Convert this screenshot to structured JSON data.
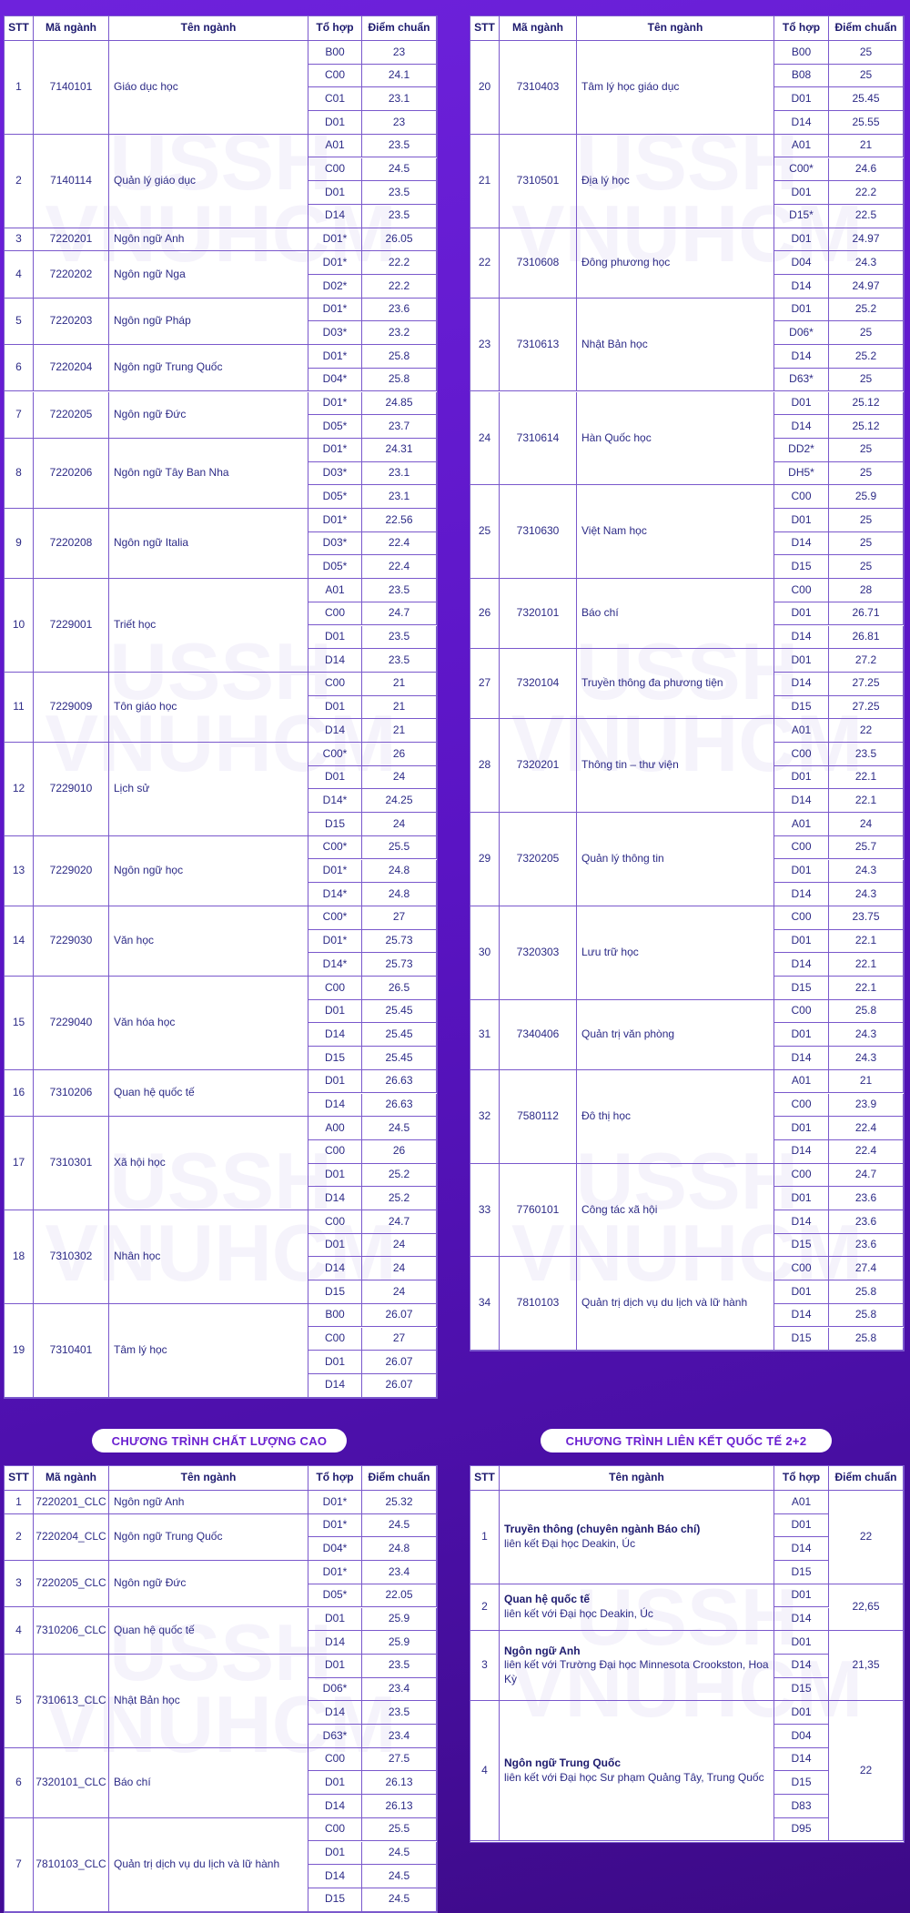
{
  "watermark": [
    "USSH",
    "VNUHCM"
  ],
  "tables": [
    {
      "headers": [
        "STT",
        "Mã ngành",
        "Tên ngành",
        "Tổ hợp",
        "Điểm chuẩn"
      ],
      "rows": [
        {
          "stt": 1,
          "code": "7140101",
          "name": "Giáo dục học",
          "combos": [
            [
              "B00",
              "23"
            ],
            [
              "C00",
              "24.1"
            ],
            [
              "C01",
              "23.1"
            ],
            [
              "D01",
              "23"
            ]
          ]
        },
        {
          "stt": 2,
          "code": "7140114",
          "name": "Quản lý giáo dục",
          "combos": [
            [
              "A01",
              "23.5"
            ],
            [
              "C00",
              "24.5"
            ],
            [
              "D01",
              "23.5"
            ],
            [
              "D14",
              "23.5"
            ]
          ]
        },
        {
          "stt": 3,
          "code": "7220201",
          "name": "Ngôn ngữ Anh",
          "combos": [
            [
              "D01*",
              "26.05"
            ]
          ]
        },
        {
          "stt": 4,
          "code": "7220202",
          "name": "Ngôn ngữ Nga",
          "combos": [
            [
              "D01*",
              "22.2"
            ],
            [
              "D02*",
              "22.2"
            ]
          ]
        },
        {
          "stt": 5,
          "code": "7220203",
          "name": "Ngôn ngữ Pháp",
          "combos": [
            [
              "D01*",
              "23.6"
            ],
            [
              "D03*",
              "23.2"
            ]
          ]
        },
        {
          "stt": 6,
          "code": "7220204",
          "name": "Ngôn ngữ Trung Quốc",
          "combos": [
            [
              "D01*",
              "25.8"
            ],
            [
              "D04*",
              "25.8"
            ]
          ]
        },
        {
          "stt": 7,
          "code": "7220205",
          "name": "Ngôn ngữ Đức",
          "combos": [
            [
              "D01*",
              "24.85"
            ],
            [
              "D05*",
              "23.7"
            ]
          ]
        },
        {
          "stt": 8,
          "code": "7220206",
          "name": "Ngôn ngữ Tây Ban Nha",
          "combos": [
            [
              "D01*",
              "24.31"
            ],
            [
              "D03*",
              "23.1"
            ],
            [
              "D05*",
              "23.1"
            ]
          ]
        },
        {
          "stt": 9,
          "code": "7220208",
          "name": "Ngôn ngữ Italia",
          "combos": [
            [
              "D01*",
              "22.56"
            ],
            [
              "D03*",
              "22.4"
            ],
            [
              "D05*",
              "22.4"
            ]
          ]
        },
        {
          "stt": 10,
          "code": "7229001",
          "name": "Triết học",
          "combos": [
            [
              "A01",
              "23.5"
            ],
            [
              "C00",
              "24.7"
            ],
            [
              "D01",
              "23.5"
            ],
            [
              "D14",
              "23.5"
            ]
          ]
        },
        {
          "stt": 11,
          "code": "7229009",
          "name": "Tôn giáo học",
          "combos": [
            [
              "C00",
              "21"
            ],
            [
              "D01",
              "21"
            ],
            [
              "D14",
              "21"
            ]
          ]
        },
        {
          "stt": 12,
          "code": "7229010",
          "name": "Lịch sử",
          "combos": [
            [
              "C00*",
              "26"
            ],
            [
              "D01",
              "24"
            ],
            [
              "D14*",
              "24.25"
            ],
            [
              "D15",
              "24"
            ]
          ]
        },
        {
          "stt": 13,
          "code": "7229020",
          "name": "Ngôn ngữ học",
          "combos": [
            [
              "C00*",
              "25.5"
            ],
            [
              "D01*",
              "24.8"
            ],
            [
              "D14*",
              "24.8"
            ]
          ]
        },
        {
          "stt": 14,
          "code": "7229030",
          "name": "Văn học",
          "combos": [
            [
              "C00*",
              "27"
            ],
            [
              "D01*",
              "25.73"
            ],
            [
              "D14*",
              "25.73"
            ]
          ]
        },
        {
          "stt": 15,
          "code": "7229040",
          "name": "Văn hóa học",
          "combos": [
            [
              "C00",
              "26.5"
            ],
            [
              "D01",
              "25.45"
            ],
            [
              "D14",
              "25.45"
            ],
            [
              "D15",
              "25.45"
            ]
          ]
        },
        {
          "stt": 16,
          "code": "7310206",
          "name": "Quan hệ quốc tế",
          "combos": [
            [
              "D01",
              "26.63"
            ],
            [
              "D14",
              "26.63"
            ]
          ]
        },
        {
          "stt": 17,
          "code": "7310301",
          "name": "Xã hội học",
          "combos": [
            [
              "A00",
              "24.5"
            ],
            [
              "C00",
              "26"
            ],
            [
              "D01",
              "25.2"
            ],
            [
              "D14",
              "25.2"
            ]
          ]
        },
        {
          "stt": 18,
          "code": "7310302",
          "name": "Nhân học",
          "combos": [
            [
              "C00",
              "24.7"
            ],
            [
              "D01",
              "24"
            ],
            [
              "D14",
              "24"
            ],
            [
              "D15",
              "24"
            ]
          ]
        },
        {
          "stt": 19,
          "code": "7310401",
          "name": "Tâm lý học",
          "combos": [
            [
              "B00",
              "26.07"
            ],
            [
              "C00",
              "27"
            ],
            [
              "D01",
              "26.07"
            ],
            [
              "D14",
              "26.07"
            ]
          ]
        }
      ]
    },
    {
      "headers": [
        "STT",
        "Mã ngành",
        "Tên ngành",
        "Tổ hợp",
        "Điểm chuẩn"
      ],
      "rows": [
        {
          "stt": 20,
          "code": "7310403",
          "name": "Tâm lý học giáo dục",
          "combos": [
            [
              "B00",
              "25"
            ],
            [
              "B08",
              "25"
            ],
            [
              "D01",
              "25.45"
            ],
            [
              "D14",
              "25.55"
            ]
          ]
        },
        {
          "stt": 21,
          "code": "7310501",
          "name": "Địa lý học",
          "combos": [
            [
              "A01",
              "21"
            ],
            [
              "C00*",
              "24.6"
            ],
            [
              "D01",
              "22.2"
            ],
            [
              "D15*",
              "22.5"
            ]
          ]
        },
        {
          "stt": 22,
          "code": "7310608",
          "name": "Đông phương học",
          "combos": [
            [
              "D01",
              "24.97"
            ],
            [
              "D04",
              "24.3"
            ],
            [
              "D14",
              "24.97"
            ]
          ]
        },
        {
          "stt": 23,
          "code": "7310613",
          "name": "Nhật Bản học",
          "combos": [
            [
              "D01",
              "25.2"
            ],
            [
              "D06*",
              "25"
            ],
            [
              "D14",
              "25.2"
            ],
            [
              "D63*",
              "25"
            ]
          ]
        },
        {
          "stt": 24,
          "code": "7310614",
          "name": "Hàn Quốc học",
          "combos": [
            [
              "D01",
              "25.12"
            ],
            [
              "D14",
              "25.12"
            ],
            [
              "DD2*",
              "25"
            ],
            [
              "DH5*",
              "25"
            ]
          ]
        },
        {
          "stt": 25,
          "code": "7310630",
          "name": "Việt Nam học",
          "combos": [
            [
              "C00",
              "25.9"
            ],
            [
              "D01",
              "25"
            ],
            [
              "D14",
              "25"
            ],
            [
              "D15",
              "25"
            ]
          ]
        },
        {
          "stt": 26,
          "code": "7320101",
          "name": "Báo chí",
          "combos": [
            [
              "C00",
              "28"
            ],
            [
              "D01",
              "26.71"
            ],
            [
              "D14",
              "26.81"
            ]
          ]
        },
        {
          "stt": 27,
          "code": "7320104",
          "name": "Truyền thông đa phương tiện",
          "combos": [
            [
              "D01",
              "27.2"
            ],
            [
              "D14",
              "27.25"
            ],
            [
              "D15",
              "27.25"
            ]
          ]
        },
        {
          "stt": 28,
          "code": "7320201",
          "name": "Thông tin – thư viện",
          "combos": [
            [
              "A01",
              "22"
            ],
            [
              "C00",
              "23.5"
            ],
            [
              "D01",
              "22.1"
            ],
            [
              "D14",
              "22.1"
            ]
          ]
        },
        {
          "stt": 29,
          "code": "7320205",
          "name": "Quản lý thông tin",
          "combos": [
            [
              "A01",
              "24"
            ],
            [
              "C00",
              "25.7"
            ],
            [
              "D01",
              "24.3"
            ],
            [
              "D14",
              "24.3"
            ]
          ]
        },
        {
          "stt": 30,
          "code": "7320303",
          "name": "Lưu trữ học",
          "combos": [
            [
              "C00",
              "23.75"
            ],
            [
              "D01",
              "22.1"
            ],
            [
              "D14",
              "22.1"
            ],
            [
              "D15",
              "22.1"
            ]
          ]
        },
        {
          "stt": 31,
          "code": "7340406",
          "name": "Quản trị văn phòng",
          "combos": [
            [
              "C00",
              "25.8"
            ],
            [
              "D01",
              "24.3"
            ],
            [
              "D14",
              "24.3"
            ]
          ]
        },
        {
          "stt": 32,
          "code": "7580112",
          "name": "Đô thị học",
          "combos": [
            [
              "A01",
              "21"
            ],
            [
              "C00",
              "23.9"
            ],
            [
              "D01",
              "22.4"
            ],
            [
              "D14",
              "22.4"
            ]
          ]
        },
        {
          "stt": 33,
          "code": "7760101",
          "name": "Công tác xã hội",
          "combos": [
            [
              "C00",
              "24.7"
            ],
            [
              "D01",
              "23.6"
            ],
            [
              "D14",
              "23.6"
            ],
            [
              "D15",
              "23.6"
            ]
          ]
        },
        {
          "stt": 34,
          "code": "7810103",
          "name": "Quản trị dịch vụ du lịch và lữ hành",
          "combos": [
            [
              "C00",
              "27.4"
            ],
            [
              "D01",
              "25.8"
            ],
            [
              "D14",
              "25.8"
            ],
            [
              "D15",
              "25.8"
            ]
          ]
        }
      ]
    },
    {
      "title": "CHƯƠNG TRÌNH CHẤT LƯỢNG CAO",
      "headers": [
        "STT",
        "Mã ngành",
        "Tên ngành",
        "Tổ hợp",
        "Điểm chuẩn"
      ],
      "rows": [
        {
          "stt": 1,
          "code": "7220201_CLC",
          "name": "Ngôn ngữ Anh",
          "combos": [
            [
              "D01*",
              "25.32"
            ]
          ]
        },
        {
          "stt": 2,
          "code": "7220204_CLC",
          "name": "Ngôn ngữ Trung Quốc",
          "combos": [
            [
              "D01*",
              "24.5"
            ],
            [
              "D04*",
              "24.8"
            ]
          ]
        },
        {
          "stt": 3,
          "code": "7220205_CLC",
          "name": "Ngôn ngữ Đức",
          "combos": [
            [
              "D01*",
              "23.4"
            ],
            [
              "D05*",
              "22.05"
            ]
          ]
        },
        {
          "stt": 4,
          "code": "7310206_CLC",
          "name": "Quan hệ quốc tế",
          "combos": [
            [
              "D01",
              "25.9"
            ],
            [
              "D14",
              "25.9"
            ]
          ]
        },
        {
          "stt": 5,
          "code": "7310613_CLC",
          "name": "Nhật Bản học",
          "combos": [
            [
              "D01",
              "23.5"
            ],
            [
              "D06*",
              "23.4"
            ],
            [
              "D14",
              "23.5"
            ],
            [
              "D63*",
              "23.4"
            ]
          ]
        },
        {
          "stt": 6,
          "code": "7320101_CLC",
          "name": "Báo chí",
          "combos": [
            [
              "C00",
              "27.5"
            ],
            [
              "D01",
              "26.13"
            ],
            [
              "D14",
              "26.13"
            ]
          ]
        },
        {
          "stt": 7,
          "code": "7810103_CLC",
          "name": "Quản trị dịch vụ du lịch và lữ hành",
          "combos": [
            [
              "C00",
              "25.5"
            ],
            [
              "D01",
              "24.5"
            ],
            [
              "D14",
              "24.5"
            ],
            [
              "D15",
              "24.5"
            ]
          ]
        }
      ]
    },
    {
      "title": "CHƯƠNG TRÌNH LIÊN KẾT QUỐC TẾ 2+2",
      "headers": [
        "STT",
        "Tên ngành",
        "Tổ hợp",
        "Điểm chuẩn"
      ],
      "rows": [
        {
          "stt": 1,
          "name": "Truyền thông (chuyên ngành Báo chí)",
          "partner": "liên kết Đại học Deakin, Úc",
          "combos": [
            "A01",
            "D01",
            "D14",
            "D15"
          ],
          "score": "22"
        },
        {
          "stt": 2,
          "name": "Quan hệ quốc tế",
          "partner": "liên kết với Đại học Deakin, Úc",
          "combos": [
            "D01",
            "D14"
          ],
          "score": "22,65"
        },
        {
          "stt": 3,
          "name": "Ngôn ngữ Anh",
          "partner": "liên kết với Trường Đại học Minnesota Crookston, Hoa Kỳ",
          "combos": [
            "D01",
            "D14",
            "D15"
          ],
          "score": "21,35"
        },
        {
          "stt": 4,
          "name": "Ngôn ngữ Trung Quốc",
          "partner": "liên kết với Đại học Sư phạm Quảng Tây, Trung Quốc",
          "combos": [
            "D01",
            "D04",
            "D14",
            "D15",
            "D83",
            "D95"
          ],
          "score": "22"
        }
      ]
    }
  ]
}
